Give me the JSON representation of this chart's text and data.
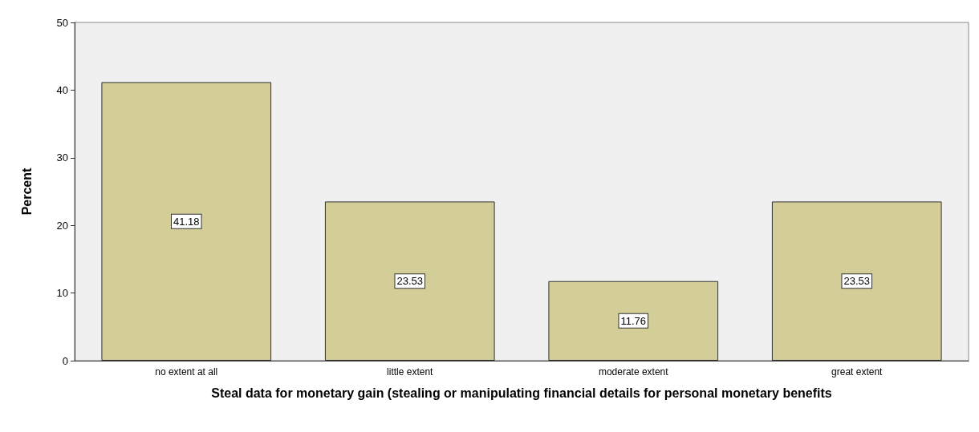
{
  "chart_data": {
    "type": "bar",
    "xlabel": "Steal data for monetary gain (stealing or manipulating financial details for personal monetary benefits",
    "ylabel": "Percent",
    "categories": [
      "no extent at all",
      "little extent",
      "moderate extent",
      "great extent"
    ],
    "values": [
      41.18,
      23.53,
      11.76,
      23.53
    ],
    "color": "#d3ce97",
    "ylim": [
      0,
      50
    ],
    "yticks": [
      0,
      10,
      20,
      30,
      40,
      50
    ],
    "grid": false,
    "data_labels": true
  }
}
